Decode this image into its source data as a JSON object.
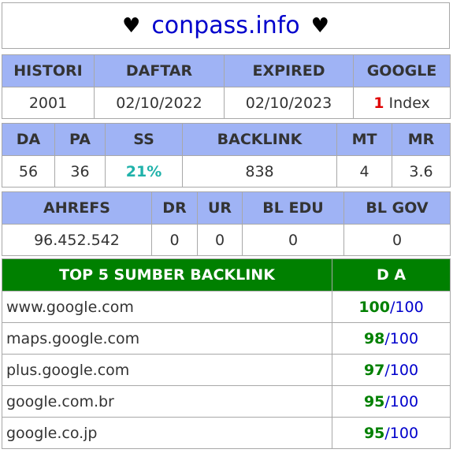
{
  "title": {
    "heart": "♥",
    "domain": "conpass.info"
  },
  "table1": {
    "headers": [
      "HISTORI",
      "DAFTAR",
      "EXPIRED",
      "GOOGLE"
    ],
    "values": {
      "histori": "2001",
      "daftar": "02/10/2022",
      "expired": "02/10/2023",
      "google_count": "1",
      "google_label": "Index"
    }
  },
  "table2": {
    "headers": [
      "DA",
      "PA",
      "SS",
      "BACKLINK",
      "MT",
      "MR"
    ],
    "values": [
      "56",
      "36",
      "21%",
      "838",
      "4",
      "3.6"
    ]
  },
  "table3": {
    "headers": [
      "AHREFS",
      "DR",
      "UR",
      "BL EDU",
      "BL GOV"
    ],
    "values": [
      "96.452.542",
      "0",
      "0",
      "0",
      "0"
    ]
  },
  "sources": {
    "header_left": "TOP 5 SUMBER BACKLINK",
    "header_right": "D A",
    "separator": "/",
    "rows": [
      {
        "domain": "www.google.com",
        "da": "100",
        "max": "100"
      },
      {
        "domain": "maps.google.com",
        "da": "98",
        "max": "100"
      },
      {
        "domain": "plus.google.com",
        "da": "97",
        "max": "100"
      },
      {
        "domain": "google.com.br",
        "da": "95",
        "max": "100"
      },
      {
        "domain": "google.co.jp",
        "da": "95",
        "max": "100"
      }
    ]
  },
  "colors": {
    "header_bg": "#9fb3f5",
    "source_header_bg": "#008000",
    "domain": "#0000cc",
    "accent_red": "#e00000",
    "ss": "#20b2aa"
  }
}
